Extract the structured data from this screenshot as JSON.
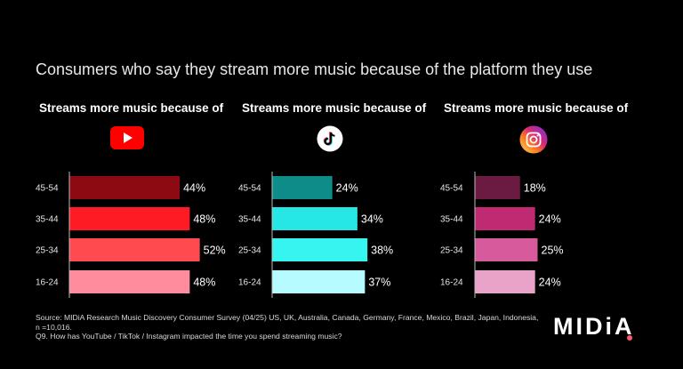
{
  "title": "Consumers who say they stream more music because of the platform they use",
  "panels": [
    {
      "heading": "Streams more music because of",
      "platform_icon": "youtube-icon"
    },
    {
      "heading": "Streams more music because of",
      "platform_icon": "tiktok-icon"
    },
    {
      "heading": "Streams more music because of",
      "platform_icon": "instagram-icon"
    }
  ],
  "chart_data": [
    {
      "type": "bar",
      "orientation": "horizontal",
      "platform": "YouTube",
      "categories": [
        "45-54",
        "35-44",
        "25-34",
        "16-24"
      ],
      "values": [
        44,
        48,
        52,
        48
      ],
      "value_labels": [
        "44%",
        "48%",
        "52%",
        "48%"
      ],
      "bar_colors": [
        "#8e0a13",
        "#ff1b24",
        "#ff4a4f",
        "#ff8c9d"
      ]
    },
    {
      "type": "bar",
      "orientation": "horizontal",
      "platform": "TikTok",
      "categories": [
        "45-54",
        "35-44",
        "25-34",
        "16-24"
      ],
      "values": [
        24,
        34,
        38,
        37
      ],
      "value_labels": [
        "24%",
        "34%",
        "38%",
        "37%"
      ],
      "bar_colors": [
        "#0e8c8a",
        "#26e6e6",
        "#36f5f0",
        "#b6fbff"
      ]
    },
    {
      "type": "bar",
      "orientation": "horizontal",
      "platform": "Instagram",
      "categories": [
        "45-54",
        "35-44",
        "25-34",
        "16-24"
      ],
      "values": [
        18,
        24,
        25,
        24
      ],
      "value_labels": [
        "18%",
        "24%",
        "25%",
        "24%"
      ],
      "bar_colors": [
        "#6b1a42",
        "#c02a72",
        "#d75a9c",
        "#e9a3c9"
      ]
    }
  ],
  "footnote": {
    "source": "Source: MIDiA Research Music Discovery Consumer Survey (04/25) US, UK, Australia, Canada, Germany, France, Mexico, Brazil, Japan, Indonesia, n =10,016.",
    "question": "Q9. How has YouTube / TikTok / Instagram impacted the time you spend streaming music?"
  },
  "brand": "MIDiA"
}
